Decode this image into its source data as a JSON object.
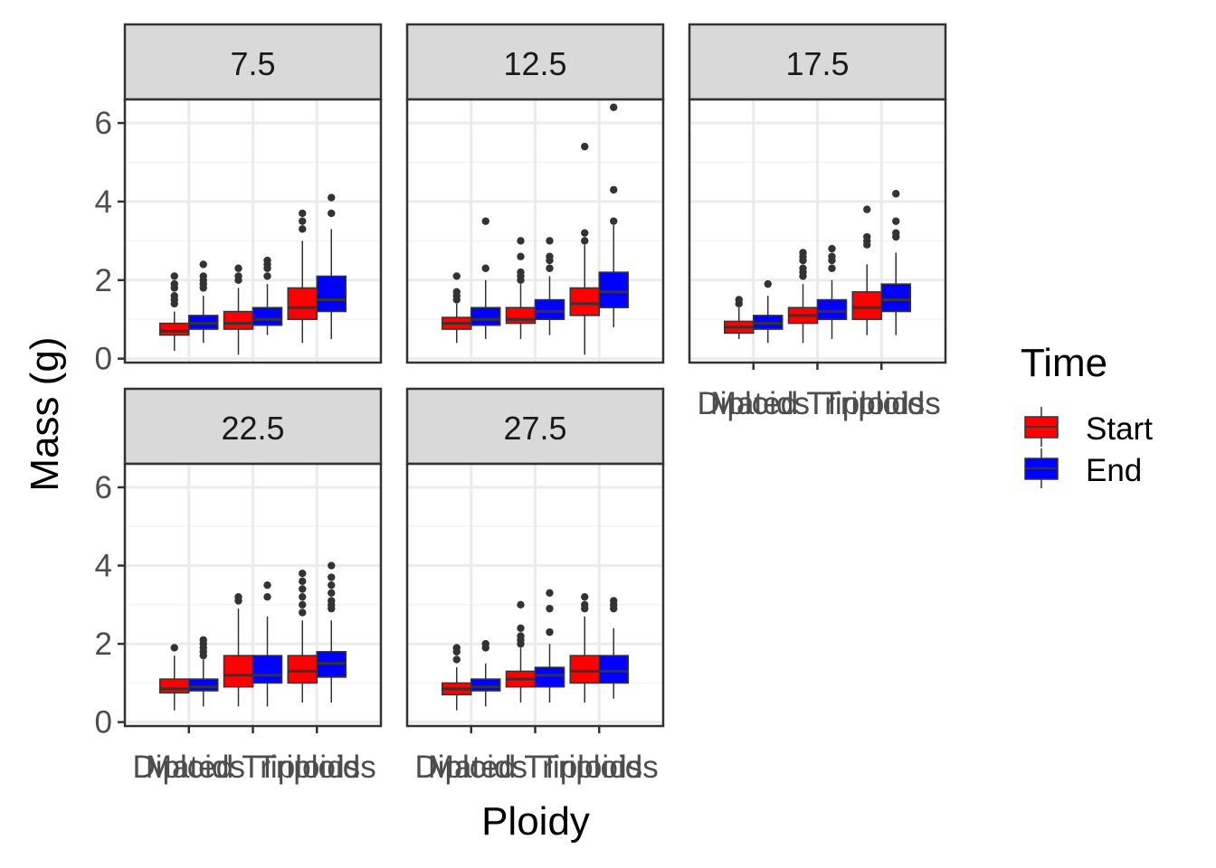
{
  "chart_data": {
    "type": "boxplot",
    "xlabel": "Ploidy",
    "ylabel": "Mass (g)",
    "ylim": [
      -0.1,
      6.6
    ],
    "yticks": [
      0,
      2,
      4,
      6
    ],
    "categories": [
      "Diploids",
      "Mated Triploids",
      "Triploids"
    ],
    "legend": {
      "title": "Time",
      "position": "right",
      "entries": [
        {
          "name": "Start",
          "color": "#ff0000"
        },
        {
          "name": "End",
          "color": "#0000ff"
        }
      ]
    },
    "grid": true,
    "facets": [
      {
        "label": "7.5",
        "groups": [
          {
            "category": "Diploids",
            "time": "Start",
            "min": 0.2,
            "q1": 0.6,
            "median": 0.7,
            "q3": 0.9,
            "max": 1.2,
            "outliers": [
              1.4,
              1.5,
              1.6,
              1.8,
              1.9,
              2.1
            ]
          },
          {
            "category": "Diploids",
            "time": "End",
            "min": 0.4,
            "q1": 0.75,
            "median": 0.9,
            "q3": 1.1,
            "max": 1.6,
            "outliers": [
              1.8,
              1.9,
              2.0,
              2.1,
              2.4
            ]
          },
          {
            "category": "Mated Triploids",
            "time": "Start",
            "min": 0.1,
            "q1": 0.75,
            "median": 0.9,
            "q3": 1.2,
            "max": 1.8,
            "outliers": [
              2.0,
              2.1,
              2.3
            ]
          },
          {
            "category": "Mated Triploids",
            "time": "End",
            "min": 0.6,
            "q1": 0.85,
            "median": 1.0,
            "q3": 1.3,
            "max": 1.9,
            "outliers": [
              2.1,
              2.3,
              2.4,
              2.5
            ]
          },
          {
            "category": "Triploids",
            "time": "Start",
            "min": 0.4,
            "q1": 1.0,
            "median": 1.3,
            "q3": 1.8,
            "max": 3.0,
            "outliers": [
              3.3,
              3.5,
              3.7
            ]
          },
          {
            "category": "Triploids",
            "time": "End",
            "min": 0.5,
            "q1": 1.2,
            "median": 1.5,
            "q3": 2.1,
            "max": 3.3,
            "outliers": [
              3.7,
              4.1
            ]
          }
        ]
      },
      {
        "label": "12.5",
        "groups": [
          {
            "category": "Diploids",
            "time": "Start",
            "min": 0.4,
            "q1": 0.75,
            "median": 0.9,
            "q3": 1.05,
            "max": 1.4,
            "outliers": [
              1.5,
              1.6,
              1.7,
              2.1
            ]
          },
          {
            "category": "Diploids",
            "time": "End",
            "min": 0.5,
            "q1": 0.85,
            "median": 1.0,
            "q3": 1.3,
            "max": 2.0,
            "outliers": [
              2.3,
              3.5
            ]
          },
          {
            "category": "Mated Triploids",
            "time": "Start",
            "min": 0.5,
            "q1": 0.9,
            "median": 1.0,
            "q3": 1.3,
            "max": 1.9,
            "outliers": [
              2.0,
              2.1,
              2.2,
              2.6,
              3.0
            ]
          },
          {
            "category": "Mated Triploids",
            "time": "End",
            "min": 0.6,
            "q1": 1.0,
            "median": 1.2,
            "q3": 1.5,
            "max": 2.1,
            "outliers": [
              2.3,
              2.5,
              2.6,
              3.0
            ]
          },
          {
            "category": "Triploids",
            "time": "Start",
            "min": 0.1,
            "q1": 1.1,
            "median": 1.4,
            "q3": 1.8,
            "max": 2.9,
            "outliers": [
              3.0,
              3.2,
              5.4
            ]
          },
          {
            "category": "Triploids",
            "time": "End",
            "min": 0.8,
            "q1": 1.3,
            "median": 1.7,
            "q3": 2.2,
            "max": 3.4,
            "outliers": [
              3.5,
              4.3,
              6.4
            ]
          }
        ]
      },
      {
        "label": "17.5",
        "groups": [
          {
            "category": "Diploids",
            "time": "Start",
            "min": 0.5,
            "q1": 0.65,
            "median": 0.8,
            "q3": 0.95,
            "max": 1.3,
            "outliers": [
              1.4,
              1.5
            ]
          },
          {
            "category": "Diploids",
            "time": "End",
            "min": 0.4,
            "q1": 0.75,
            "median": 0.9,
            "q3": 1.1,
            "max": 1.6,
            "outliers": [
              1.9
            ]
          },
          {
            "category": "Mated Triploids",
            "time": "Start",
            "min": 0.4,
            "q1": 0.9,
            "median": 1.1,
            "q3": 1.3,
            "max": 1.9,
            "outliers": [
              2.1,
              2.2,
              2.3,
              2.5,
              2.6,
              2.7
            ]
          },
          {
            "category": "Mated Triploids",
            "time": "End",
            "min": 0.5,
            "q1": 1.0,
            "median": 1.2,
            "q3": 1.5,
            "max": 2.0,
            "outliers": [
              2.3,
              2.5,
              2.6,
              2.8
            ]
          },
          {
            "category": "Triploids",
            "time": "Start",
            "min": 0.6,
            "q1": 1.0,
            "median": 1.3,
            "q3": 1.7,
            "max": 2.4,
            "outliers": [
              2.9,
              3.0,
              3.1,
              3.8
            ]
          },
          {
            "category": "Triploids",
            "time": "End",
            "min": 0.6,
            "q1": 1.2,
            "median": 1.5,
            "q3": 1.9,
            "max": 2.7,
            "outliers": [
              3.1,
              3.2,
              3.5,
              4.2
            ]
          }
        ]
      },
      {
        "label": "22.5",
        "groups": [
          {
            "category": "Diploids",
            "time": "Start",
            "min": 0.3,
            "q1": 0.75,
            "median": 0.85,
            "q3": 1.1,
            "max": 1.7,
            "outliers": [
              1.9
            ]
          },
          {
            "category": "Diploids",
            "time": "End",
            "min": 0.4,
            "q1": 0.8,
            "median": 0.9,
            "q3": 1.1,
            "max": 1.6,
            "outliers": [
              1.7,
              1.8,
              1.9,
              2.0,
              2.1
            ]
          },
          {
            "category": "Mated Triploids",
            "time": "Start",
            "min": 0.4,
            "q1": 0.9,
            "median": 1.2,
            "q3": 1.7,
            "max": 2.9,
            "outliers": [
              3.1,
              3.2
            ]
          },
          {
            "category": "Mated Triploids",
            "time": "End",
            "min": 0.4,
            "q1": 1.0,
            "median": 1.2,
            "q3": 1.7,
            "max": 2.7,
            "outliers": [
              3.2,
              3.5
            ]
          },
          {
            "category": "Triploids",
            "time": "Start",
            "min": 0.5,
            "q1": 1.0,
            "median": 1.3,
            "q3": 1.7,
            "max": 2.6,
            "outliers": [
              2.8,
              3.0,
              3.2,
              3.4,
              3.6,
              3.8
            ]
          },
          {
            "category": "Triploids",
            "time": "End",
            "min": 0.5,
            "q1": 1.15,
            "median": 1.5,
            "q3": 1.8,
            "max": 2.6,
            "outliers": [
              2.9,
              3.0,
              3.1,
              3.3,
              3.5,
              3.7,
              4.0
            ]
          }
        ]
      },
      {
        "label": "27.5",
        "groups": [
          {
            "category": "Diploids",
            "time": "Start",
            "min": 0.3,
            "q1": 0.7,
            "median": 0.85,
            "q3": 1.0,
            "max": 1.4,
            "outliers": [
              1.6,
              1.8,
              1.9
            ]
          },
          {
            "category": "Diploids",
            "time": "End",
            "min": 0.4,
            "q1": 0.8,
            "median": 0.9,
            "q3": 1.1,
            "max": 1.5,
            "outliers": [
              1.9,
              2.0
            ]
          },
          {
            "category": "Mated Triploids",
            "time": "Start",
            "min": 0.5,
            "q1": 0.9,
            "median": 1.1,
            "q3": 1.3,
            "max": 1.9,
            "outliers": [
              2.0,
              2.1,
              2.2,
              2.4,
              3.0
            ]
          },
          {
            "category": "Mated Triploids",
            "time": "End",
            "min": 0.5,
            "q1": 0.9,
            "median": 1.2,
            "q3": 1.4,
            "max": 2.0,
            "outliers": [
              2.3,
              2.9,
              3.3
            ]
          },
          {
            "category": "Triploids",
            "time": "Start",
            "min": 0.5,
            "q1": 1.0,
            "median": 1.3,
            "q3": 1.7,
            "max": 2.7,
            "outliers": [
              2.9,
              3.0,
              3.2
            ]
          },
          {
            "category": "Triploids",
            "time": "End",
            "min": 0.6,
            "q1": 1.0,
            "median": 1.3,
            "q3": 1.7,
            "max": 2.4,
            "outliers": [
              2.9,
              3.0,
              3.1
            ]
          }
        ]
      }
    ]
  }
}
